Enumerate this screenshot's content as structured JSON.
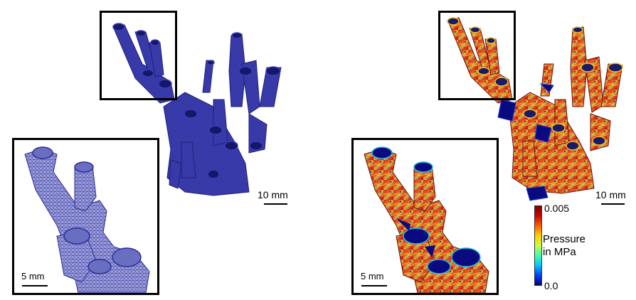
{
  "left_panel": {
    "scale_main": "10 mm",
    "scale_inset": "5 mm",
    "mesh_color": "#2b2d9a",
    "inset_mesh_color": "#8a8ecf"
  },
  "right_panel": {
    "scale_main": "10 mm",
    "scale_inset": "5 mm",
    "legend": {
      "max": "0.005",
      "min": "0.0",
      "title_line1": "Pressure",
      "title_line2": "in MPa",
      "colors": [
        "#00007a",
        "#0040ff",
        "#00c8ff",
        "#40ffb0",
        "#c8ff40",
        "#ffd000",
        "#ff6000",
        "#d00000",
        "#7a0000"
      ]
    }
  }
}
